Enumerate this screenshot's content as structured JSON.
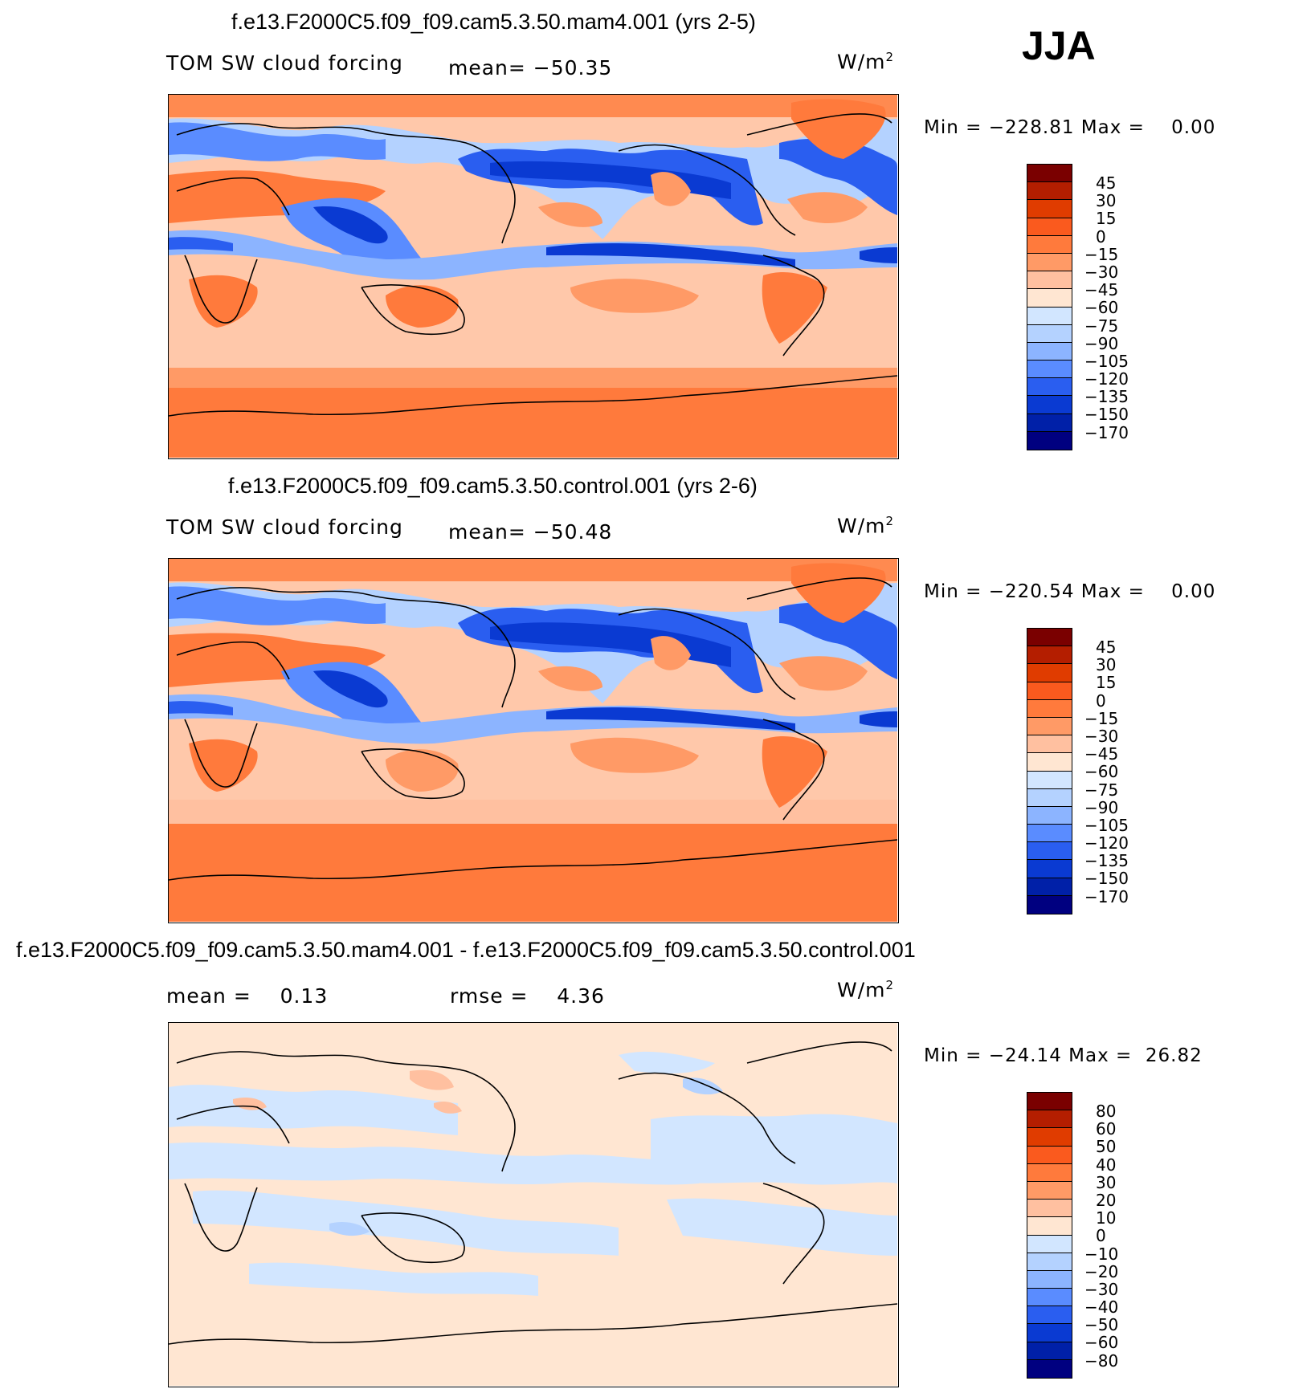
{
  "season": "JJA",
  "panels": [
    {
      "title": "f.e13.F2000C5.f09_f09.cam5.3.50.mam4.001 (yrs 2-5)",
      "variable": "TOM SW cloud forcing",
      "stat1": "mean= −50.35",
      "stat2": "",
      "units": "W/m",
      "units_sup": "2",
      "minmax": "Min = −228.81 Max =    0.00",
      "colorbar": {
        "colors": [
          "#7a0000",
          "#b41e00",
          "#e03c00",
          "#fa5a1e",
          "#ff7a3c",
          "#ff9a66",
          "#ffc0a0",
          "#ffe6d2",
          "#d2e6ff",
          "#b4d2ff",
          "#8cb4ff",
          "#5a8cff",
          "#2a5ef0",
          "#0a3ad2",
          "#0020a8",
          "#000080"
        ],
        "labels": [
          "45",
          "30",
          "15",
          "0",
          "−15",
          "−30",
          "−45",
          "−60",
          "−75",
          "−90",
          "−105",
          "−120",
          "−135",
          "−150",
          "−170"
        ]
      }
    },
    {
      "title": "f.e13.F2000C5.f09_f09.cam5.3.50.control.001 (yrs 2-6)",
      "variable": "TOM SW cloud forcing",
      "stat1": "mean= −50.48",
      "stat2": "",
      "units": "W/m",
      "units_sup": "2",
      "minmax": "Min = −220.54 Max =    0.00",
      "colorbar": {
        "colors": [
          "#7a0000",
          "#b41e00",
          "#e03c00",
          "#fa5a1e",
          "#ff7a3c",
          "#ff9a66",
          "#ffc0a0",
          "#ffe6d2",
          "#d2e6ff",
          "#b4d2ff",
          "#8cb4ff",
          "#5a8cff",
          "#2a5ef0",
          "#0a3ad2",
          "#0020a8",
          "#000080"
        ],
        "labels": [
          "45",
          "30",
          "15",
          "0",
          "−15",
          "−30",
          "−45",
          "−60",
          "−75",
          "−90",
          "−105",
          "−120",
          "−135",
          "−150",
          "−170"
        ]
      }
    },
    {
      "title": "f.e13.F2000C5.f09_f09.cam5.3.50.mam4.001 - f.e13.F2000C5.f09_f09.cam5.3.50.control.001",
      "variable": "",
      "stat1": "mean =    0.13",
      "stat2": "rmse =    4.36",
      "units": "W/m",
      "units_sup": "2",
      "minmax": "Min = −24.14 Max =  26.82",
      "colorbar": {
        "colors": [
          "#7a0000",
          "#b41e00",
          "#e03c00",
          "#fa5a1e",
          "#ff7a3c",
          "#ff9a66",
          "#ffc0a0",
          "#ffe6d2",
          "#d2e6ff",
          "#b4d2ff",
          "#8cb4ff",
          "#5a8cff",
          "#2a5ef0",
          "#0a3ad2",
          "#0020a8",
          "#000080"
        ],
        "labels": [
          "80",
          "60",
          "50",
          "40",
          "30",
          "20",
          "10",
          "0",
          "−10",
          "−20",
          "−30",
          "−40",
          "−50",
          "−60",
          "−80"
        ]
      }
    }
  ]
}
